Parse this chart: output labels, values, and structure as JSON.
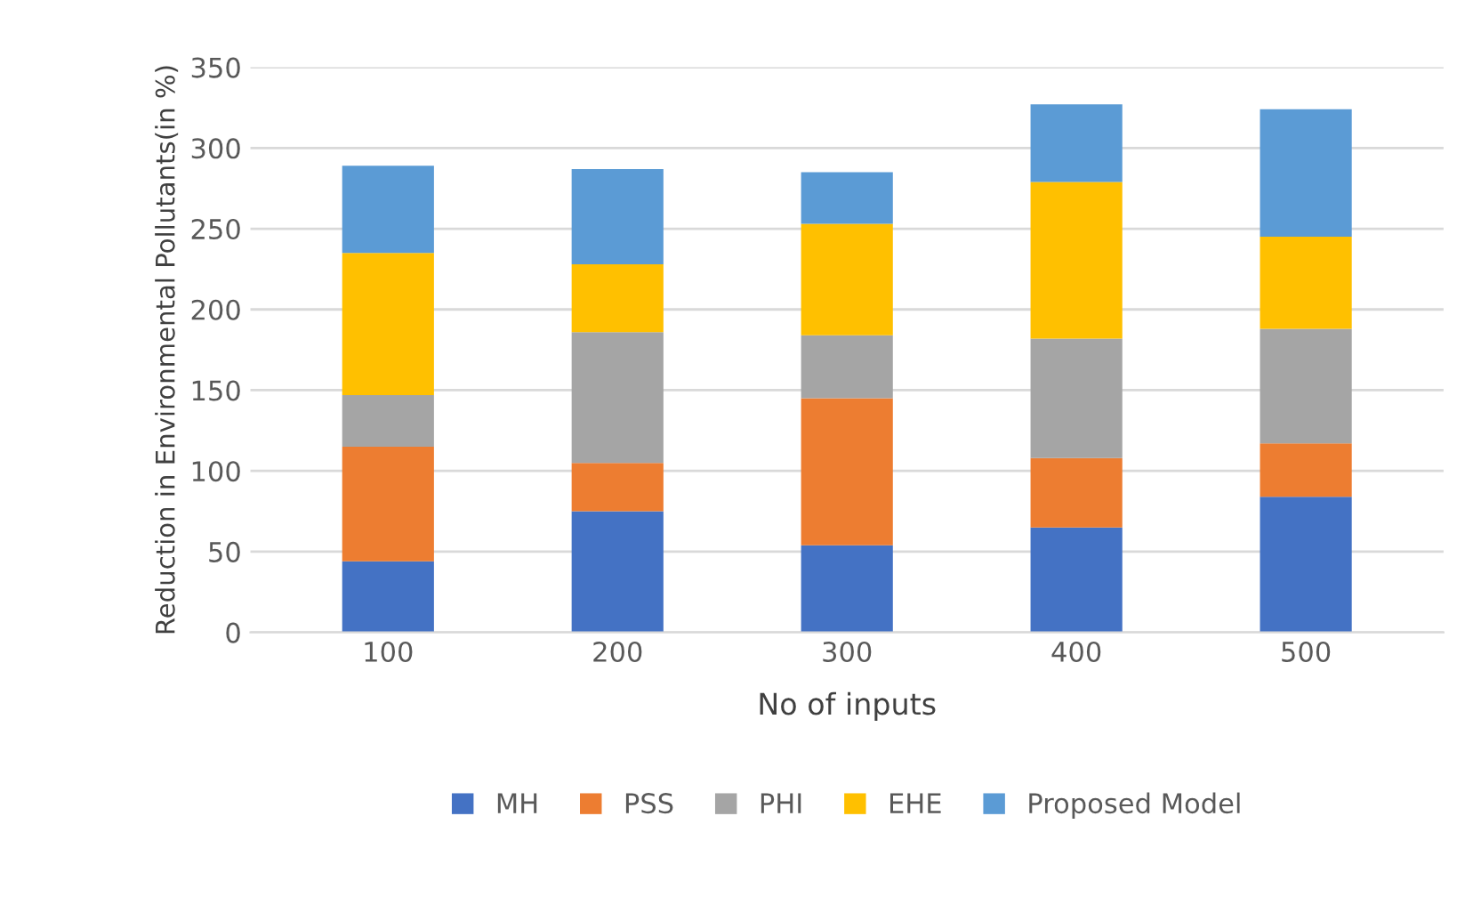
{
  "chart_data": {
    "type": "bar",
    "stacked": true,
    "xlabel": "No of inputs",
    "ylabel": "Reduction in Environmental Pollutants(in %)",
    "categories": [
      "100",
      "200",
      "300",
      "400",
      "500"
    ],
    "series": [
      {
        "name": "MH",
        "color": "#4472c4",
        "values": [
          44,
          75,
          54,
          65,
          84
        ]
      },
      {
        "name": "PSS",
        "color": "#ed7d31",
        "values": [
          71,
          30,
          91,
          43,
          33
        ]
      },
      {
        "name": "PHI",
        "color": "#a5a5a5",
        "values": [
          32,
          81,
          39,
          74,
          71
        ]
      },
      {
        "name": "EHE",
        "color": "#ffc000",
        "values": [
          88,
          42,
          69,
          97,
          57
        ]
      },
      {
        "name": "Proposed Model",
        "color": "#5b9bd5",
        "values": [
          54,
          59,
          32,
          48,
          79
        ]
      }
    ],
    "ylim": [
      0,
      350
    ],
    "yticks": [
      0,
      50,
      100,
      150,
      200,
      250,
      300,
      350
    ],
    "grid": "y",
    "legend": "bottom"
  }
}
